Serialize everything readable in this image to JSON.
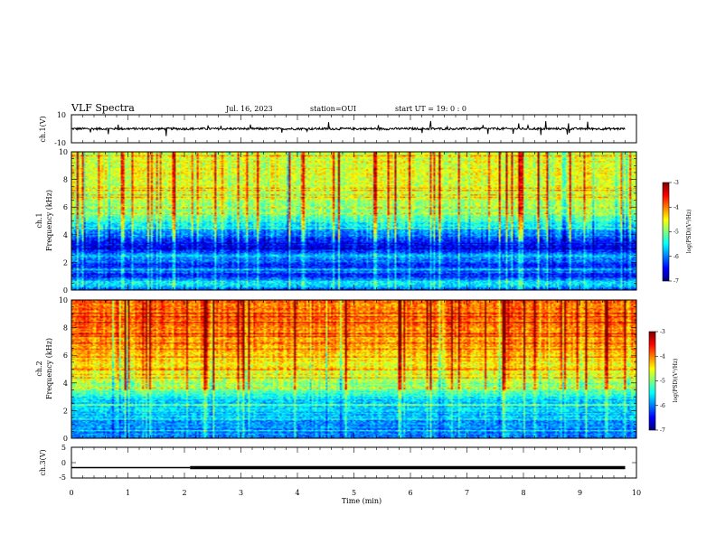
{
  "header": {
    "title": "VLF Spectra",
    "date": "Jul. 16, 2023",
    "station": "station=OUI",
    "start": "start UT = 19: 0 : 0"
  },
  "chart_data": [
    {
      "type": "line",
      "name": "ch1-waveform",
      "ylabel": "ch.1(V)",
      "ylim": [
        -10,
        10
      ],
      "yticks": [
        "10",
        "-10"
      ],
      "x": [
        0,
        10
      ],
      "baseline_v": 0,
      "color": "#000000"
    },
    {
      "type": "heatmap",
      "name": "ch1-spectrogram",
      "ylabel": "ch.1\nFrequency (kHz)",
      "ylabel_top": "ch.1",
      "ylabel_bottom": "Frequency (kHz)",
      "ylim": [
        0,
        10
      ],
      "yticks": [
        "0",
        "2",
        "4",
        "6",
        "8",
        "10"
      ],
      "xlim": [
        0,
        10
      ],
      "colorbar": {
        "label": "log(PSD)(V²/Hz)",
        "range": [
          -7,
          -3
        ],
        "ticks": [
          "-3",
          "-4",
          "-5",
          "-6",
          "-7"
        ]
      },
      "profile_khz_to_logpsd": [
        [
          0,
          -6.3
        ],
        [
          0.5,
          -5.4
        ],
        [
          1.0,
          -6.4
        ],
        [
          2.0,
          -6.2
        ],
        [
          2.5,
          -5.6
        ],
        [
          3.0,
          -6.7
        ],
        [
          3.5,
          -6.4
        ],
        [
          4.0,
          -6.0
        ],
        [
          4.8,
          -5.5
        ],
        [
          5.5,
          -5.0
        ],
        [
          6.5,
          -4.8
        ],
        [
          8.0,
          -4.6
        ],
        [
          10.0,
          -4.6
        ]
      ]
    },
    {
      "type": "heatmap",
      "name": "ch2-spectrogram",
      "ylabel": "ch.2\nFrequency (kHz)",
      "ylabel_top": "ch.2",
      "ylabel_bottom": "Frequency (kHz)",
      "ylim": [
        0,
        10
      ],
      "yticks": [
        "0",
        "2",
        "4",
        "6",
        "8",
        "10"
      ],
      "xlim": [
        0,
        10
      ],
      "colorbar": {
        "label": "log(PSD)(V²/Hz)",
        "range": [
          -7,
          -3
        ],
        "ticks": [
          "-3",
          "-4",
          "-5",
          "-6",
          "-7"
        ]
      },
      "profile_khz_to_logpsd": [
        [
          0,
          -6.0
        ],
        [
          1.0,
          -5.9
        ],
        [
          2.0,
          -5.7
        ],
        [
          2.8,
          -5.6
        ],
        [
          3.5,
          -5.1
        ],
        [
          4.5,
          -4.7
        ],
        [
          6.0,
          -4.3
        ],
        [
          8.0,
          -4.0
        ],
        [
          10.0,
          -3.9
        ]
      ]
    },
    {
      "type": "line",
      "name": "ch3-signal",
      "ylabel": "ch.3(V)",
      "ylim": [
        -5,
        5
      ],
      "yticks": [
        "5",
        "0",
        "-5"
      ],
      "x": [
        0,
        2.1,
        2.1,
        9.8
      ],
      "y": [
        -1.6,
        -1.6,
        -1.6,
        -1.6
      ],
      "color": "#000000"
    }
  ],
  "xaxis": {
    "label": "Time (min)",
    "ticks": [
      "0",
      "1",
      "2",
      "3",
      "4",
      "5",
      "6",
      "7",
      "8",
      "9",
      "10"
    ],
    "xlim": [
      0,
      10
    ]
  }
}
